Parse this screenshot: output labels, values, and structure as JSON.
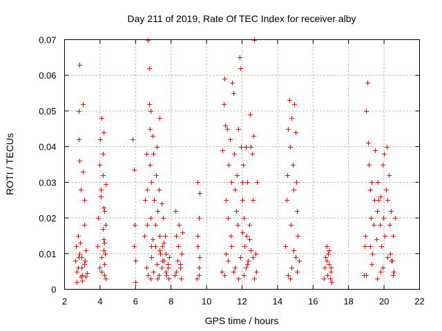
{
  "chart_data": {
    "type": "scatter",
    "title": "Day 211 of 2019, Rate Of TEC Index for receiver alby",
    "xlabel": "GPS time / hours",
    "ylabel": "ROTI / TECUs",
    "xlim": [
      2,
      22
    ],
    "ylim": [
      0,
      0.07
    ],
    "x_ticks": [
      2,
      4,
      6,
      8,
      10,
      12,
      14,
      16,
      18,
      20,
      22
    ],
    "y_ticks": [
      0,
      0.01,
      0.02,
      0.03,
      0.04,
      0.05,
      0.06,
      0.07
    ],
    "x_tick_labels": [
      "2",
      "4",
      "6",
      "8",
      "10",
      "12",
      "14",
      "16",
      "18",
      "20",
      "22"
    ],
    "y_tick_labels": [
      "0",
      "0.01",
      "0.02",
      "0.03",
      "0.04",
      "0.05",
      "0.06",
      "0.07"
    ],
    "grid": true,
    "marker": "+",
    "color": "#ff0000",
    "series": [
      {
        "name": "ROTI",
        "x": [
          2.6,
          2.65,
          2.7,
          2.75,
          2.8,
          2.8,
          2.82,
          2.85,
          2.9,
          2.9,
          2.95,
          3.0,
          3.05,
          3.05,
          3.1,
          3.1,
          3.2,
          3.2,
          3.25,
          2.75,
          2.85,
          3.0,
          2.7,
          2.78,
          2.88,
          2.95,
          3.1,
          3.15,
          3.85,
          3.9,
          3.95,
          4.0,
          4.05,
          4.1,
          4.1,
          4.15,
          4.15,
          4.2,
          4.2,
          4.25,
          4.25,
          4.3,
          4.3,
          4.1,
          4.2,
          4.3,
          3.95,
          4.05,
          4.15,
          4.25,
          4.18,
          4.22,
          4.28,
          5.85,
          5.9,
          5.95,
          6.0,
          6.0,
          5.9,
          6.5,
          6.55,
          6.6,
          6.65,
          6.7,
          6.75,
          6.75,
          6.8,
          6.8,
          6.85,
          6.85,
          6.9,
          6.9,
          6.95,
          7.0,
          7.05,
          7.1,
          7.15,
          7.2,
          7.25,
          7.3,
          7.35,
          7.35,
          7.4,
          7.45,
          7.5,
          6.6,
          6.7,
          6.85,
          6.9,
          7.0,
          7.1,
          7.2,
          7.3,
          7.35,
          7.45,
          6.65,
          6.95,
          7.25,
          7.5,
          7.55,
          7.6,
          7.65,
          7.7,
          7.75,
          7.8,
          7.85,
          7.9,
          7.6,
          7.7,
          7.8,
          8.2,
          8.25,
          8.3,
          8.35,
          8.4,
          8.45,
          8.5,
          8.55,
          8.6,
          8.65,
          8.3,
          8.5,
          9.45,
          9.5,
          9.5,
          9.55,
          9.55,
          9.6,
          9.6,
          9.5,
          9.55,
          10.85,
          10.9,
          10.95,
          11.0,
          11.05,
          11.1,
          11.15,
          11.2,
          11.25,
          11.3,
          11.35,
          11.4,
          11.45,
          11.5,
          11.55,
          11.6,
          11.65,
          11.7,
          11.75,
          11.8,
          11.85,
          11.9,
          11.95,
          12.0,
          11.0,
          11.2,
          11.4,
          11.6,
          11.8,
          12.0,
          11.1,
          11.5,
          11.9,
          12.0,
          12.05,
          12.1,
          12.15,
          12.2,
          12.25,
          12.3,
          12.35,
          12.4,
          12.45,
          12.5,
          12.55,
          12.6,
          12.65,
          12.7,
          12.75,
          12.8,
          12.85,
          12.1,
          12.3,
          12.5,
          12.7,
          12.2,
          12.6,
          12.4,
          14.45,
          14.5,
          14.55,
          14.6,
          14.65,
          14.7,
          14.75,
          14.8,
          14.85,
          14.9,
          14.95,
          15.0,
          15.05,
          15.1,
          15.15,
          15.2,
          14.6,
          14.8,
          15.0,
          14.7,
          14.9,
          15.1,
          16.6,
          16.65,
          16.7,
          16.75,
          16.8,
          16.85,
          16.9,
          16.95,
          17.0,
          17.05,
          16.75,
          16.9,
          17.0,
          18.85,
          18.9,
          18.95,
          19.0,
          19.05,
          19.1,
          19.15,
          19.2,
          19.25,
          19.3,
          19.35,
          19.4,
          19.45,
          19.5,
          19.55,
          19.6,
          19.65,
          19.7,
          19.75,
          19.8,
          19.85,
          19.9,
          19.95,
          20.0,
          20.05,
          20.1,
          20.15,
          20.2,
          20.25,
          20.3,
          20.35,
          20.4,
          20.45,
          20.5,
          20.55,
          20.6,
          19.0,
          19.3,
          19.6,
          19.9,
          20.2,
          20.5,
          19.2,
          19.8,
          20.4
        ],
        "y": [
          0.008,
          0.012,
          0.005,
          0.015,
          0.05,
          0.042,
          0.063,
          0.036,
          0.0035,
          0.028,
          0.009,
          0.0025,
          0.033,
          0.052,
          0.025,
          0.007,
          0.0035,
          0.011,
          0.0045,
          0.006,
          0.01,
          0.004,
          0.002,
          0.009,
          0.013,
          0.006,
          0.018,
          0.008,
          0.012,
          0.02,
          0.035,
          0.042,
          0.026,
          0.048,
          0.005,
          0.032,
          0.017,
          0.044,
          0.011,
          0.022,
          0.007,
          0.0295,
          0.003,
          0.009,
          0.014,
          0.018,
          0.006,
          0.028,
          0.038,
          0.013,
          0.023,
          0.004,
          0.01,
          0.042,
          0.0335,
          0.018,
          0.008,
          0.002,
          0.012,
          0.015,
          0.025,
          0.038,
          0.028,
          0.07,
          0.052,
          0.062,
          0.045,
          0.035,
          0.02,
          0.05,
          0.03,
          0.012,
          0.043,
          0.038,
          0.025,
          0.018,
          0.032,
          0.04,
          0.022,
          0.028,
          0.048,
          0.015,
          0.01,
          0.024,
          0.008,
          0.006,
          0.004,
          0.003,
          0.009,
          0.005,
          0.012,
          0.007,
          0.004,
          0.011,
          0.006,
          0.018,
          0.014,
          0.003,
          0.012,
          0.02,
          0.008,
          0.015,
          0.01,
          0.004,
          0.006,
          0.003,
          0.009,
          0.013,
          0.005,
          0.007,
          0.004,
          0.022,
          0.015,
          0.008,
          0.012,
          0.018,
          0.006,
          0.003,
          0.01,
          0.016,
          0.005,
          0.007,
          0.003,
          0.03,
          0.012,
          0.02,
          0.006,
          0.027,
          0.009,
          0.015,
          0.004,
          0.005,
          0.039,
          0.052,
          0.059,
          0.046,
          0.025,
          0.045,
          0.02,
          0.035,
          0.042,
          0.015,
          0.03,
          0.058,
          0.055,
          0.038,
          0.028,
          0.022,
          0.032,
          0.018,
          0.045,
          0.065,
          0.062,
          0.04,
          0.03,
          0.004,
          0.008,
          0.012,
          0.006,
          0.003,
          0.016,
          0.01,
          0.005,
          0.009,
          0.025,
          0.035,
          0.02,
          0.012,
          0.04,
          0.015,
          0.03,
          0.008,
          0.018,
          0.049,
          0.04,
          0.038,
          0.025,
          0.043,
          0.07,
          0.01,
          0.005,
          0.03,
          0.004,
          0.007,
          0.011,
          0.003,
          0.006,
          0.009,
          0.014,
          0.012,
          0.025,
          0.032,
          0.045,
          0.053,
          0.04,
          0.018,
          0.048,
          0.035,
          0.028,
          0.052,
          0.044,
          0.03,
          0.022,
          0.015,
          0.008,
          0.004,
          0.006,
          0.009,
          0.003,
          0.011,
          0.005,
          0.003,
          0.006,
          0.009,
          0.012,
          0.004,
          0.01,
          0.007,
          0.003,
          0.005,
          0.002,
          0.008,
          0.011,
          0.006,
          0.004,
          0.012,
          0.015,
          0.05,
          0.058,
          0.041,
          0.035,
          0.028,
          0.02,
          0.03,
          0.01,
          0.018,
          0.025,
          0.039,
          0.014,
          0.022,
          0.03,
          0.025,
          0.018,
          0.026,
          0.012,
          0.035,
          0.02,
          0.038,
          0.015,
          0.028,
          0.04,
          0.025,
          0.032,
          0.018,
          0.01,
          0.022,
          0.008,
          0.015,
          0.005,
          0.02,
          0.004,
          0.007,
          0.003,
          0.006,
          0.009,
          0.004,
          0.012,
          0.005,
          0.008
        ]
      }
    ]
  }
}
